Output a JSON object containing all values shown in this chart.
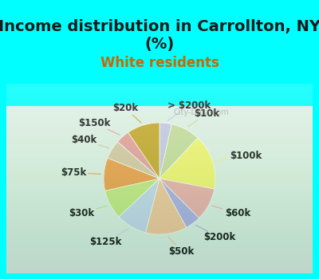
{
  "title": "Income distribution in Carrollton, NY\n(%)",
  "subtitle": "White residents",
  "title_color": "#1a1a1a",
  "subtitle_color": "#cc6600",
  "background_top": "#00ffff",
  "background_bottom": "#00ffff",
  "chart_bg_start": "#e8f5e9",
  "chart_bg_end": "#f0fff0",
  "labels": [
    "> $200k",
    "$10k",
    "$100k",
    "$60k",
    "$200k",
    "$50k",
    "$125k",
    "$30k",
    "$75k",
    "$40k",
    "$150k",
    "$20k"
  ],
  "values": [
    3.5,
    8.5,
    16.0,
    9.5,
    4.5,
    12.0,
    9.0,
    8.5,
    9.5,
    5.5,
    4.0,
    9.5
  ],
  "colors": [
    "#c8c8e8",
    "#c8dca0",
    "#f5f576",
    "#f0b0b0",
    "#b0b0e8",
    "#f5c8a0",
    "#c8d8f0",
    "#c8e888",
    "#f0a050",
    "#d8c8a8",
    "#e8a0a0",
    "#c8a830"
  ],
  "label_fontsize": 8.5,
  "title_fontsize": 14,
  "subtitle_fontsize": 12,
  "wedge_linewidth": 0.5,
  "wedge_edgecolor": "#ffffff",
  "startangle": 90,
  "label_distance": 1.25,
  "pctdistance": 0.7
}
